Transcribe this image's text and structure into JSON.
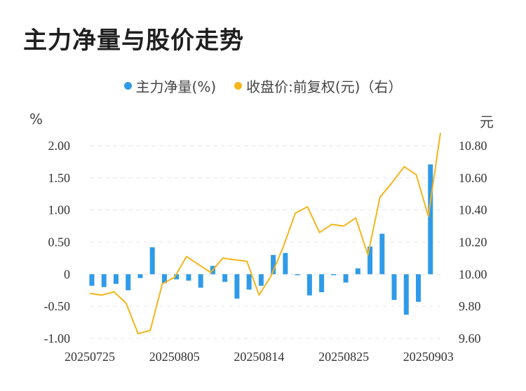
{
  "title": "主力净量与股价走势",
  "chart_data": {
    "type": "bar+line",
    "legend": [
      {
        "name": "主力净量(%)",
        "color": "#2f9be8"
      },
      {
        "name": "收盘价:前复权(元)（右）",
        "color": "#f5b51b"
      }
    ],
    "left_unit": "%",
    "right_unit": "元",
    "left_ticks": [
      "2.00",
      "1.50",
      "1.00",
      "0.50",
      "0",
      "-0.50",
      "-1.00"
    ],
    "right_ticks": [
      "10.80",
      "10.60",
      "10.40",
      "10.20",
      "10.00",
      "9.80",
      "9.60"
    ],
    "ylim_left": [
      -1.0,
      2.0
    ],
    "ylim_right": [
      9.6,
      10.8
    ],
    "x_labels": [
      "20250725",
      "20250805",
      "20250814",
      "20250825",
      "20250903"
    ],
    "x_label_indices": [
      0,
      7,
      14,
      21,
      28
    ],
    "n": 30,
    "bars": [
      -0.18,
      -0.2,
      -0.15,
      -0.25,
      -0.06,
      0.42,
      -0.14,
      -0.08,
      -0.1,
      -0.21,
      0.13,
      -0.12,
      -0.38,
      -0.24,
      -0.18,
      0.3,
      0.33,
      -0.01,
      -0.33,
      -0.28,
      -0.01,
      -0.13,
      0.09,
      0.43,
      0.63,
      -0.4,
      -0.63,
      -0.43,
      1.71,
      0.0
    ],
    "line": [
      9.88,
      9.87,
      9.89,
      9.82,
      9.63,
      9.65,
      9.94,
      9.98,
      10.11,
      10.06,
      10.01,
      10.1,
      10.09,
      10.08,
      9.87,
      9.99,
      10.17,
      10.38,
      10.42,
      10.26,
      10.31,
      10.3,
      10.35,
      10.12,
      10.48,
      10.57,
      10.67,
      10.62,
      10.36,
      10.88
    ],
    "bar_color": "#2f9be8",
    "line_color": "#f5b51b",
    "grid": "dashed"
  }
}
